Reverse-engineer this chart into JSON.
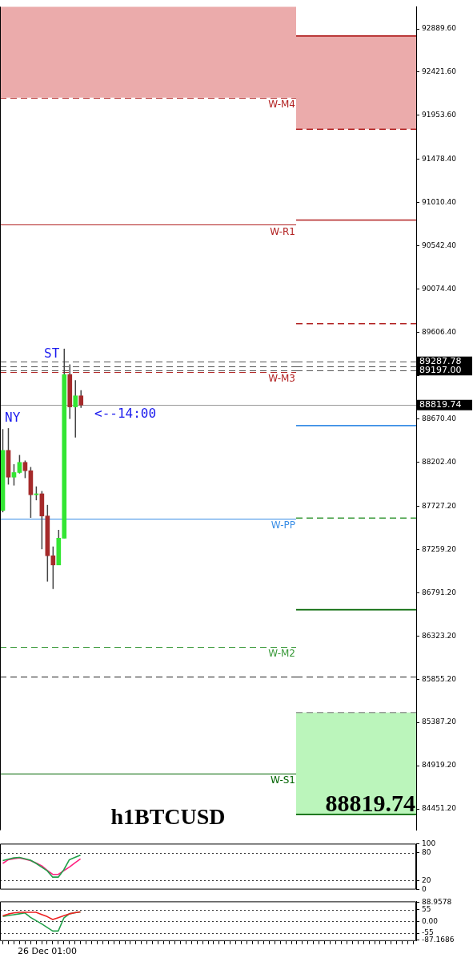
{
  "chart_data": [
    {
      "type": "candlestick",
      "title": "h1BTCUSD",
      "tick_labels": false,
      "categories": [
        null,
        null,
        null,
        null,
        null,
        null,
        null,
        null,
        null,
        null,
        null,
        null,
        null,
        null,
        null,
        null,
        null,
        null,
        null,
        null,
        null,
        null,
        null,
        null,
        null,
        null,
        null,
        null,
        null,
        null,
        null,
        null,
        null,
        null,
        null,
        null,
        null,
        null,
        null,
        null,
        null,
        null,
        null,
        null,
        null,
        null,
        null,
        null,
        null,
        null,
        null,
        null,
        null
      ],
      "ohlc": [
        [
          87680,
          88560,
          87660,
          88330
        ],
        [
          88330,
          88570,
          87960,
          88040
        ],
        [
          88040,
          88180,
          87950,
          88090
        ],
        [
          88090,
          88280,
          88080,
          88200
        ],
        [
          88200,
          88220,
          88030,
          88110
        ],
        [
          88110,
          88150,
          87600,
          87850
        ],
        [
          87850,
          87940,
          87790,
          87860
        ],
        [
          87860,
          87890,
          87260,
          87620
        ],
        [
          87620,
          87740,
          86910,
          87190
        ],
        [
          87190,
          87290,
          86830,
          87090
        ],
        [
          87090,
          87470,
          87090,
          87380
        ],
        [
          87380,
          89430,
          87380,
          89150
        ],
        [
          89150,
          89260,
          88670,
          88800
        ],
        [
          88800,
          89090,
          88470,
          88920
        ],
        [
          88920,
          88980,
          88790,
          88819.74
        ],
        null,
        null,
        null,
        null,
        null,
        null,
        null,
        null,
        null,
        null,
        null,
        null,
        null,
        null,
        null,
        null,
        null,
        null,
        null,
        null,
        null,
        null,
        null,
        null,
        null,
        null,
        null,
        null,
        null,
        null,
        null,
        null,
        null,
        null,
        null,
        null,
        null,
        null
      ],
      "colors": [
        "#33e633",
        "#a52a2a",
        "#33e633",
        "#33e633",
        "#a52a2a",
        "#a52a2a",
        "#33e633",
        "#a52a2a",
        "#a52a2a",
        "#a52a2a",
        "#33e633",
        "#33e633",
        "#a52a2a",
        "#33e633",
        "#a52a2a",
        null,
        null,
        null,
        null,
        null,
        null,
        null,
        null,
        null,
        null,
        null,
        null,
        null,
        null,
        null,
        null,
        null,
        null,
        null,
        null,
        null,
        null,
        null,
        null,
        null,
        null,
        null,
        null,
        null,
        null,
        null,
        null,
        null,
        null,
        null,
        null,
        null,
        null
      ],
      "ylim": [
        84221,
        93129
      ],
      "yticks": [
        92889.6,
        92421.6,
        91953.6,
        91478.4,
        91010.4,
        90542.4,
        90074.4,
        89606.4,
        89138.4,
        88670.4,
        88202.4,
        87727.2,
        87259.2,
        86791.2,
        86323.2,
        85855.2,
        85387.2,
        84919.2,
        84451.2
      ],
      "bands": [
        {
          "axis": "y",
          "from": 92146,
          "to": 93129,
          "color": "#ebabab"
        }
      ],
      "ref_lines": [
        {
          "axis": "y",
          "value": 92146,
          "label": "W-M4",
          "color": "#b22222",
          "line_style": "dashed"
        },
        {
          "axis": "y",
          "value": 90770,
          "label": "W-R1",
          "color": "#b22222",
          "line_style": "solid"
        },
        {
          "axis": "y",
          "value": 89287.78,
          "color": "#555555",
          "line_style": "dashed"
        },
        {
          "axis": "y",
          "value": 89242,
          "color": "#555555",
          "line_style": "dashed"
        },
        {
          "axis": "y",
          "value": 89197,
          "color": "#555555",
          "line_style": "dashed"
        },
        {
          "axis": "y",
          "value": 89180,
          "label": "W-M3",
          "color": "#b22222",
          "line_style": "dashed"
        },
        {
          "axis": "y",
          "value": 88819.74,
          "color": "#999999",
          "line_style": "solid"
        },
        {
          "axis": "y",
          "value": 87590,
          "label": "W-PP",
          "color": "#3a8ee6",
          "line_style": "solid"
        },
        {
          "axis": "y",
          "value": 86205,
          "label": "W-M2",
          "color": "#3a9a3a",
          "line_style": "dashed"
        },
        {
          "axis": "y",
          "value": 85880,
          "color": "#222222",
          "line_style": "dashed"
        },
        {
          "axis": "y",
          "value": 84837,
          "label": "W-S1",
          "color": "#006400",
          "line_style": "solid"
        }
      ],
      "annotations": [
        "ST",
        "NY",
        "<--14:00"
      ]
    },
    {
      "type": "line",
      "title": "88819.74",
      "ylim": [
        84221,
        93129
      ],
      "categories": [
        null,
        null,
        null,
        null,
        null,
        null,
        null,
        null,
        null,
        null,
        null,
        null,
        null,
        null,
        null,
        null,
        null,
        null,
        null,
        null,
        null,
        null
      ],
      "series": [
        {
          "color": "#b22222",
          "line_style": "solid",
          "values": [
            92813,
            92813,
            92813,
            92813,
            92813,
            92813,
            92813,
            92813,
            92813,
            92813,
            92813,
            92813,
            92813,
            92813,
            92813,
            92813,
            92813,
            92813,
            92813,
            92813,
            92813,
            92813
          ]
        },
        {
          "color": "#b22222",
          "line_style": "dashed",
          "values": [
            91804,
            91804,
            91804,
            91804,
            91804,
            91804,
            91804,
            91804,
            91804,
            91804,
            91804,
            91804,
            91804,
            91804,
            91804,
            91804,
            91804,
            91804,
            91804,
            91804,
            91804,
            91804
          ]
        },
        {
          "color": "#b22222",
          "line_style": "solid",
          "values": [
            90821,
            90821,
            90821,
            90821,
            90821,
            90821,
            90821,
            90821,
            90821,
            90821,
            90821,
            90821,
            90821,
            90821,
            90821,
            90821,
            90821,
            90821,
            90821,
            90821,
            90821,
            90821
          ]
        },
        {
          "color": "#b22222",
          "line_style": "dashed",
          "values": [
            89701,
            89701,
            89701,
            89701,
            89701,
            89701,
            89701,
            89701,
            89701,
            89701,
            89701,
            89701,
            89701,
            89701,
            89701,
            89701,
            89701,
            89701,
            89701,
            89701,
            89701,
            89701
          ]
        },
        {
          "color": "#3a8ee6",
          "line_style": "solid",
          "values": [
            88598,
            88598,
            88598,
            88598,
            88598,
            88598,
            88598,
            88598,
            88598,
            88598,
            88598,
            88598,
            88598,
            88598,
            88598,
            88598,
            88598,
            88598,
            88598,
            88598,
            88598,
            88598
          ]
        },
        {
          "color": "#3a9a3a",
          "line_style": "dashed",
          "values": [
            87598,
            87598,
            87598,
            87598,
            87598,
            87598,
            87598,
            87598,
            87598,
            87598,
            87598,
            87598,
            87598,
            87598,
            87598,
            87598,
            87598,
            87598,
            87598,
            87598,
            87598,
            87598
          ]
        },
        {
          "color": "#006400",
          "line_style": "solid",
          "values": [
            86606,
            86606,
            86606,
            86606,
            86606,
            86606,
            86606,
            86606,
            86606,
            86606,
            86606,
            86606,
            86606,
            86606,
            86606,
            86606,
            86606,
            86606,
            86606,
            86606,
            86606,
            86606
          ]
        },
        {
          "color": "#999999",
          "line_style": "dashed",
          "values": [
            85495,
            85495,
            85495,
            85495,
            85495,
            85495,
            85495,
            85495,
            85495,
            85495,
            85495,
            85495,
            85495,
            85495,
            85495,
            85495,
            85495,
            85495,
            85495,
            85495,
            85495,
            85495
          ]
        },
        {
          "color": "#006400",
          "line_style": "solid",
          "values": [
            84392,
            84392,
            84392,
            84392,
            84392,
            84392,
            84392,
            84392,
            84392,
            84392,
            84392,
            84392,
            84392,
            84392,
            84392,
            84392,
            84392,
            84392,
            84392,
            84392,
            84392,
            84392
          ]
        }
      ],
      "yticks": [
        {
          "value": 92889.6,
          "label": "92889.60"
        },
        {
          "value": 92421.6,
          "label": "92421.60"
        },
        {
          "value": 91953.6,
          "label": "91953.60"
        },
        {
          "value": 91478.4,
          "label": "91478.40"
        },
        {
          "value": 91010.4,
          "label": "91010.40"
        },
        {
          "value": 90542.4,
          "label": "90542.40"
        },
        {
          "value": 90074.4,
          "label": "90074.40"
        },
        {
          "value": 89606.4,
          "label": "89606.40"
        },
        {
          "value": 89138.4,
          "label": null
        },
        {
          "value": 88670.4,
          "label": "88670.40"
        },
        {
          "value": 88202.4,
          "label": "88202.40"
        },
        {
          "value": 87727.2,
          "label": "87727.20"
        },
        {
          "value": 87259.2,
          "label": "87259.20"
        },
        {
          "value": 86791.2,
          "label": "86791.20"
        },
        {
          "value": 86323.2,
          "label": "86323.20"
        },
        {
          "value": 85855.2,
          "label": "85855.20"
        },
        {
          "value": 85387.2,
          "label": "85387.20"
        },
        {
          "value": 84919.2,
          "label": "84919.20"
        },
        {
          "value": 84451.2,
          "label": "84451.20"
        }
      ],
      "bands": [
        {
          "axis": "y",
          "from": 91804,
          "to": 92813,
          "color": "#ebabab"
        },
        {
          "axis": "y",
          "from": 84392,
          "to": 85495,
          "color": "#bbf5bb"
        }
      ],
      "ref_lines": [
        {
          "axis": "y",
          "value": 89287.78,
          "label": "89287.78",
          "color": "#555555",
          "line_style": "dashed"
        },
        {
          "axis": "y",
          "value": 89242,
          "color": "#555555",
          "line_style": "dashed"
        },
        {
          "axis": "y",
          "value": 89197,
          "label": "89197.00",
          "color": "#555555",
          "line_style": "dashed"
        },
        {
          "axis": "y",
          "value": 88819.74,
          "label": "88819.74",
          "color": "#999999",
          "line_style": "solid"
        },
        {
          "axis": "y",
          "value": 85880,
          "color": "#222222",
          "line_style": "dashed"
        }
      ]
    },
    {
      "type": "line",
      "tick_labels": "y",
      "ylim": [
        0,
        100
      ],
      "yticks": [
        100,
        80,
        20,
        0
      ],
      "categories": [
        null,
        null,
        null,
        null,
        null,
        null,
        null,
        null,
        null,
        null,
        null,
        null,
        null,
        null,
        null,
        null,
        null,
        null,
        null,
        null,
        null,
        null,
        null,
        null,
        null,
        null,
        null,
        null,
        null,
        null,
        null,
        null,
        null,
        null,
        null,
        null,
        null,
        null,
        null,
        null,
        null,
        null,
        null,
        null,
        null,
        null,
        null,
        null,
        null,
        null,
        null,
        null,
        null,
        null,
        null,
        null,
        null,
        null,
        null,
        null,
        null,
        null,
        null,
        null,
        null,
        null,
        null,
        null,
        null,
        null,
        null,
        null,
        null,
        null,
        null
      ],
      "ref_lines": [
        {
          "axis": "y",
          "value": 80,
          "color": "#333333",
          "line_style": "dotted"
        },
        {
          "axis": "y",
          "value": 20,
          "color": "#333333",
          "line_style": "dotted"
        }
      ],
      "series": [
        {
          "color": "#22a04a",
          "values": [
            63,
            66,
            69,
            70,
            67,
            64,
            57,
            49,
            41,
            27,
            27,
            43,
            65,
            70,
            75,
            null,
            null,
            null,
            null,
            null,
            null,
            null,
            null,
            null,
            null,
            null,
            null,
            null,
            null,
            null,
            null,
            null,
            null,
            null,
            null,
            null,
            null,
            null,
            null,
            null,
            null,
            null,
            null,
            null,
            null,
            null,
            null,
            null,
            null,
            null,
            null,
            null,
            null,
            null,
            null,
            null,
            null,
            null,
            null,
            null,
            null,
            null,
            null,
            null,
            null,
            null,
            null,
            null,
            null,
            null,
            null,
            null,
            null,
            null,
            null
          ]
        },
        {
          "color": "#ff2080",
          "values": [
            57,
            65,
            67,
            69,
            66,
            63,
            58,
            52,
            42,
            33,
            33,
            41,
            49,
            58,
            67,
            null,
            null,
            null,
            null,
            null,
            null,
            null,
            null,
            null,
            null,
            null,
            null,
            null,
            null,
            null,
            null,
            null,
            null,
            null,
            null,
            null,
            null,
            null,
            null,
            null,
            null,
            null,
            null,
            null,
            null,
            null,
            null,
            null,
            null,
            null,
            null,
            null,
            null,
            null,
            null,
            null,
            null,
            null,
            null,
            null,
            null,
            null,
            null,
            null,
            null,
            null,
            null,
            null,
            null,
            null,
            null,
            null,
            null,
            null,
            null
          ]
        }
      ]
    },
    {
      "type": "line",
      "ylim": [
        -91.7,
        94.3
      ],
      "categories": [
        null,
        null,
        null,
        null,
        null,
        null,
        null,
        null,
        "26 Dec 01:00",
        null,
        null,
        null,
        null,
        null,
        null,
        null,
        null,
        null,
        null,
        null,
        null,
        null,
        null,
        null,
        null,
        null,
        null,
        null,
        null,
        null,
        null,
        null,
        null,
        null,
        null,
        null,
        null,
        null,
        null,
        null,
        null,
        null,
        null,
        null,
        null,
        null,
        null,
        null,
        null,
        null,
        null,
        null,
        null,
        null,
        null,
        null,
        null,
        null,
        null,
        null,
        null,
        null,
        null,
        null,
        null,
        null,
        null,
        null,
        null,
        null,
        null,
        null,
        null,
        null,
        null
      ],
      "yticks": [
        88.9578,
        55,
        {
          "value": 0,
          "label": "0.00"
        },
        -55,
        -87.1686
      ],
      "ref_lines": [
        {
          "axis": "y",
          "value": 55,
          "color": "#333333",
          "line_style": "dotted"
        },
        {
          "axis": "y",
          "value": 0,
          "color": "#333333",
          "line_style": "dotted"
        },
        {
          "axis": "y",
          "value": -55,
          "color": "#333333",
          "line_style": "dotted"
        }
      ],
      "series": [
        {
          "color": "#ee2222",
          "values": [
            27,
            35,
            40,
            43,
            43,
            43,
            43,
            33,
            23,
            9,
            18,
            27,
            36,
            41,
            45,
            null,
            null,
            null,
            null,
            null,
            null,
            null,
            null,
            null,
            null,
            null,
            null,
            null,
            null,
            null,
            null,
            null,
            null,
            null,
            null,
            null,
            null,
            null,
            null,
            null,
            null,
            null,
            null,
            null,
            null,
            null,
            null,
            null,
            null,
            null,
            null,
            null,
            null,
            null,
            null,
            null,
            null,
            null,
            null,
            null,
            null,
            null,
            null,
            null,
            null,
            null,
            null,
            null,
            null,
            null,
            null,
            null,
            null,
            null,
            null
          ]
        },
        {
          "color": "#22a04a",
          "values": [
            23,
            28,
            32,
            36,
            40,
            19,
            4,
            -11,
            -28,
            -45,
            -45,
            16,
            36,
            41,
            45,
            null,
            null,
            null,
            null,
            null,
            null,
            null,
            null,
            null,
            null,
            null,
            null,
            null,
            null,
            null,
            null,
            null,
            null,
            null,
            null,
            null,
            null,
            null,
            null,
            null,
            null,
            null,
            null,
            null,
            null,
            null,
            null,
            null,
            null,
            null,
            null,
            null,
            null,
            null,
            null,
            null,
            null,
            null,
            null,
            null,
            null,
            null,
            null,
            null,
            null,
            null,
            null,
            null,
            null,
            null,
            null,
            null,
            null,
            null,
            null
          ]
        }
      ]
    }
  ]
}
